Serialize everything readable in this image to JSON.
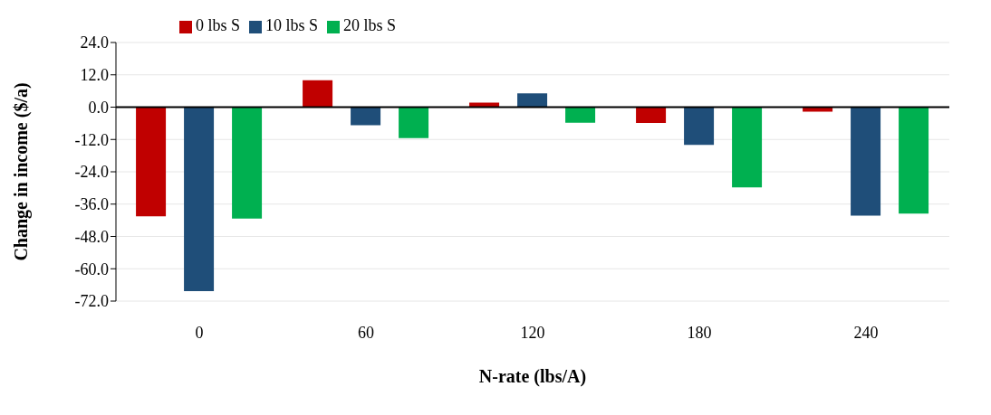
{
  "chart_data": {
    "type": "bar",
    "xlabel": "N-rate (lbs/A)",
    "ylabel": "Change in income ($/a)",
    "categories": [
      "0",
      "60",
      "120",
      "180",
      "240"
    ],
    "series": [
      {
        "name": "0 lbs S",
        "color": "#c00000",
        "values": [
          -40.5,
          10.0,
          1.7,
          -5.9,
          -1.7
        ]
      },
      {
        "name": "10 lbs S",
        "color": "#1f4e79",
        "values": [
          -68.3,
          -6.7,
          5.1,
          -14.0,
          -40.3
        ]
      },
      {
        "name": "20 lbs S",
        "color": "#00b050",
        "values": [
          -41.4,
          -11.5,
          -5.8,
          -29.8,
          -39.5
        ]
      }
    ],
    "ylim": [
      -72,
      24
    ],
    "yticks": [
      {
        "value": 24,
        "label": "24.0"
      },
      {
        "value": 12,
        "label": "12.0"
      },
      {
        "value": 0,
        "label": "0.0"
      },
      {
        "value": -12,
        "label": "-12.0"
      },
      {
        "value": -24,
        "label": "-24.0"
      },
      {
        "value": -36,
        "label": "-36.0"
      },
      {
        "value": -48,
        "label": "-48.0"
      },
      {
        "value": -60,
        "label": "-60.0"
      },
      {
        "value": -72,
        "label": "-72.0"
      }
    ],
    "grid": "y",
    "legend": "top left"
  }
}
